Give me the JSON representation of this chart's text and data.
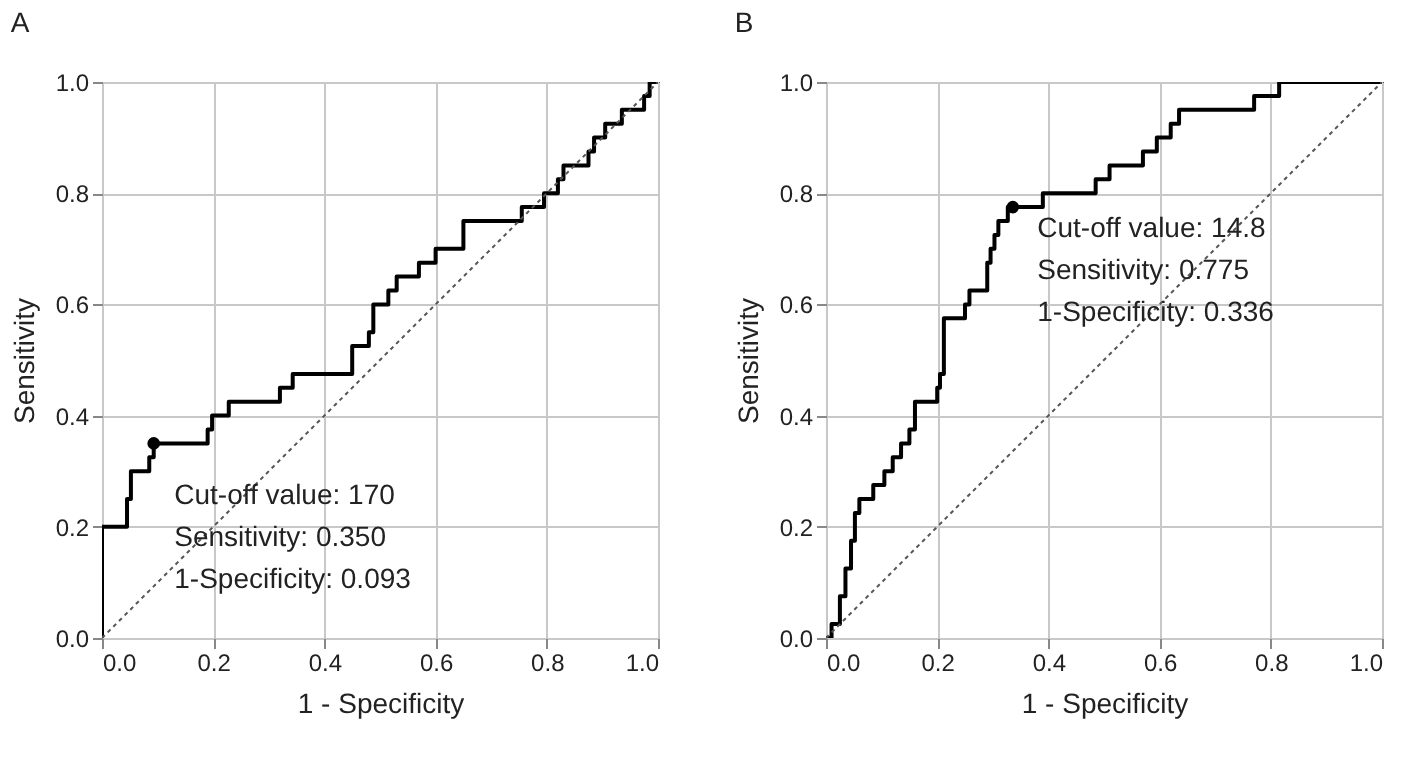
{
  "chart_data": [
    {
      "type": "line",
      "title": "A",
      "xlabel": "1 - Specificity",
      "ylabel": "Sensitivity",
      "xlim": [
        0,
        1
      ],
      "ylim": [
        0,
        1
      ],
      "xticks": [
        {
          "value": 0,
          "label": "0.0"
        },
        {
          "value": 0.2,
          "label": "0.2"
        },
        {
          "value": 0.4,
          "label": "0.4"
        },
        {
          "value": 0.6,
          "label": "0.6"
        },
        {
          "value": 0.8,
          "label": "0.8"
        },
        {
          "value": 1,
          "label": "1.0"
        }
      ],
      "yticks": [
        {
          "value": 0,
          "label": "0.0"
        },
        {
          "value": 0.2,
          "label": "0.2"
        },
        {
          "value": 0.4,
          "label": "0.4"
        },
        {
          "value": 0.6,
          "label": "0.6"
        },
        {
          "value": 0.8,
          "label": "0.8"
        },
        {
          "value": 1,
          "label": "1.0"
        }
      ],
      "grid": true,
      "annotations": [
        "Cut-off value: 170",
        "Sensitivity: 0.350",
        "1-Specificity: 0.093"
      ],
      "series": [
        {
          "color": "#000000",
          "line_style": "solid",
          "x": [
            0,
            0,
            0.045,
            0.045,
            0.052,
            0.052,
            0.085,
            0.085,
            0.093,
            0.093,
            0.19,
            0.19,
            0.198,
            0.198,
            0.228,
            0.228,
            0.32,
            0.32,
            0.343,
            0.343,
            0.45,
            0.45,
            0.48,
            0.48,
            0.488,
            0.488,
            0.515,
            0.515,
            0.53,
            0.53,
            0.57,
            0.57,
            0.6,
            0.6,
            0.65,
            0.65,
            0.755,
            0.755,
            0.795,
            0.795,
            0.82,
            0.82,
            0.83,
            0.83,
            0.875,
            0.875,
            0.885,
            0.885,
            0.905,
            0.905,
            0.935,
            0.935,
            0.975,
            0.975,
            0.985,
            0.985,
            1
          ],
          "values": [
            0,
            0.2,
            0.2,
            0.25,
            0.25,
            0.3,
            0.3,
            0.325,
            0.325,
            0.35,
            0.35,
            0.375,
            0.375,
            0.4,
            0.4,
            0.425,
            0.425,
            0.45,
            0.45,
            0.475,
            0.475,
            0.525,
            0.525,
            0.55,
            0.55,
            0.6,
            0.6,
            0.625,
            0.625,
            0.65,
            0.65,
            0.675,
            0.675,
            0.7,
            0.7,
            0.75,
            0.75,
            0.775,
            0.775,
            0.8,
            0.8,
            0.825,
            0.825,
            0.85,
            0.85,
            0.875,
            0.875,
            0.9,
            0.9,
            0.925,
            0.925,
            0.95,
            0.95,
            0.975,
            0.975,
            1,
            1
          ]
        },
        {
          "color": "#555555",
          "line_style": "dotted",
          "x": [
            0,
            1
          ],
          "values": [
            0,
            1
          ]
        },
        {
          "type": "scatter",
          "color": "#000000",
          "x": [
            0.093
          ],
          "values": [
            0.35
          ]
        }
      ]
    },
    {
      "type": "line",
      "title": "B",
      "xlabel": "1 - Specificity",
      "ylabel": "Sensitivity",
      "xlim": [
        0,
        1
      ],
      "ylim": [
        0,
        1
      ],
      "xticks": [
        {
          "value": 0,
          "label": "0.0"
        },
        {
          "value": 0.2,
          "label": "0.2"
        },
        {
          "value": 0.4,
          "label": "0.4"
        },
        {
          "value": 0.6,
          "label": "0.6"
        },
        {
          "value": 0.8,
          "label": "0.8"
        },
        {
          "value": 1,
          "label": "1.0"
        }
      ],
      "yticks": [
        {
          "value": 0,
          "label": "0.0"
        },
        {
          "value": 0.2,
          "label": "0.2"
        },
        {
          "value": 0.4,
          "label": "0.4"
        },
        {
          "value": 0.6,
          "label": "0.6"
        },
        {
          "value": 0.8,
          "label": "0.8"
        },
        {
          "value": 1,
          "label": "1.0"
        }
      ],
      "grid": true,
      "annotations": [
        "Cut-off value: 14.8",
        "Sensitivity: 0.775",
        "1-Specificity: 0.336"
      ],
      "series": [
        {
          "color": "#000000",
          "line_style": "solid",
          "x": [
            0,
            0.01,
            0.01,
            0.025,
            0.025,
            0.035,
            0.035,
            0.045,
            0.045,
            0.052,
            0.052,
            0.06,
            0.06,
            0.085,
            0.085,
            0.105,
            0.105,
            0.12,
            0.12,
            0.135,
            0.135,
            0.15,
            0.15,
            0.16,
            0.16,
            0.2,
            0.2,
            0.205,
            0.205,
            0.212,
            0.212,
            0.25,
            0.25,
            0.258,
            0.258,
            0.29,
            0.29,
            0.296,
            0.296,
            0.303,
            0.303,
            0.31,
            0.31,
            0.327,
            0.327,
            0.39,
            0.39,
            0.485,
            0.485,
            0.51,
            0.51,
            0.57,
            0.57,
            0.595,
            0.595,
            0.62,
            0.62,
            0.635,
            0.635,
            0.77,
            0.77,
            0.815,
            0.815,
            1
          ],
          "values": [
            0,
            0,
            0.025,
            0.025,
            0.075,
            0.075,
            0.125,
            0.125,
            0.175,
            0.175,
            0.225,
            0.225,
            0.25,
            0.25,
            0.275,
            0.275,
            0.3,
            0.3,
            0.325,
            0.325,
            0.35,
            0.35,
            0.375,
            0.375,
            0.425,
            0.425,
            0.45,
            0.45,
            0.475,
            0.475,
            0.575,
            0.575,
            0.6,
            0.6,
            0.625,
            0.625,
            0.675,
            0.675,
            0.7,
            0.7,
            0.725,
            0.725,
            0.75,
            0.75,
            0.775,
            0.775,
            0.8,
            0.8,
            0.825,
            0.825,
            0.85,
            0.85,
            0.875,
            0.875,
            0.9,
            0.9,
            0.925,
            0.925,
            0.95,
            0.95,
            0.975,
            0.975,
            1,
            1
          ]
        },
        {
          "color": "#555555",
          "line_style": "dotted",
          "x": [
            0,
            1
          ],
          "values": [
            0,
            1
          ]
        },
        {
          "type": "scatter",
          "color": "#000000",
          "x": [
            0.336
          ],
          "values": [
            0.775
          ]
        }
      ]
    }
  ]
}
